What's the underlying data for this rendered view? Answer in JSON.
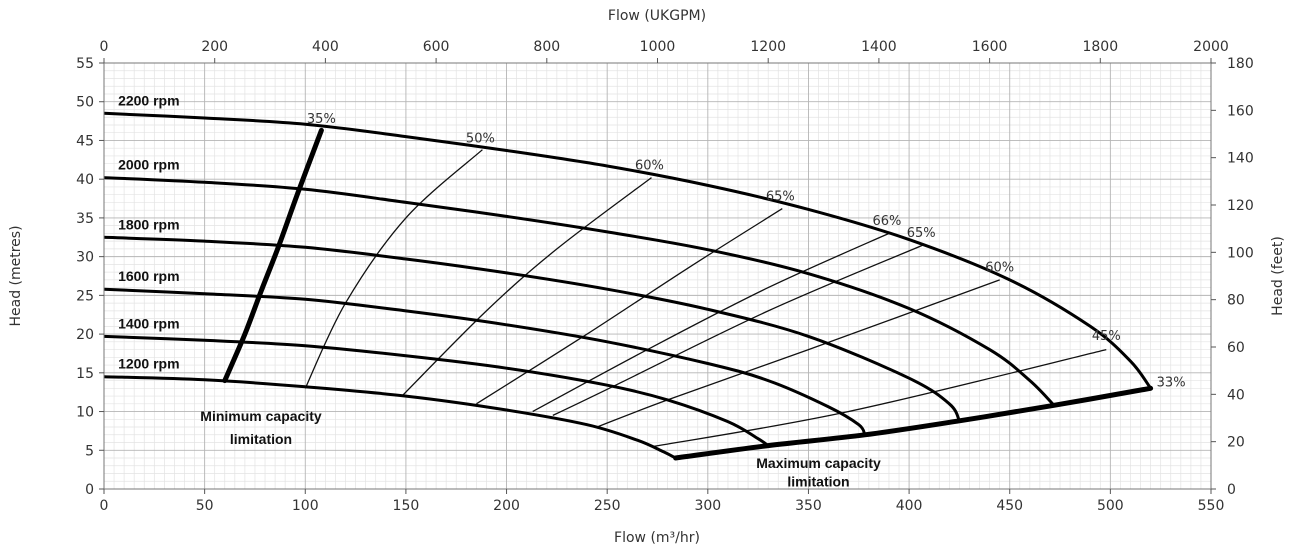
{
  "chart_data": {
    "type": "line",
    "title": "",
    "xlabel": "Flow (m³/hr)",
    "x2label": "Flow (UKGPM)",
    "ylabel": "Head (metres)",
    "y2label": "Head (feet)",
    "xlim": [
      0,
      550
    ],
    "ylim": [
      0,
      55
    ],
    "x2lim": [
      0,
      2000
    ],
    "y2lim": [
      0,
      180
    ],
    "x_ticks": [
      "0",
      "50",
      "100",
      "150",
      "200",
      "250",
      "300",
      "350",
      "400",
      "450",
      "500",
      "550"
    ],
    "y_ticks": [
      "0",
      "5",
      "10",
      "15",
      "20",
      "25",
      "30",
      "35",
      "40",
      "45",
      "50",
      "55"
    ],
    "x2_ticks": [
      "0",
      "200",
      "400",
      "600",
      "800",
      "1000",
      "1200",
      "1400",
      "1600",
      "1800",
      "2000"
    ],
    "y2_ticks": [
      "0",
      "20",
      "40",
      "60",
      "80",
      "100",
      "120",
      "140",
      "160",
      "180"
    ],
    "grid": true,
    "series": [
      {
        "name": "2200 rpm",
        "x": [
          0,
          50,
          100,
          150,
          200,
          250,
          300,
          350,
          400,
          450,
          490,
          510,
          520
        ],
        "y": [
          48.5,
          47.9,
          47.1,
          45.5,
          43.7,
          41.7,
          39.2,
          36.1,
          32.2,
          27.0,
          21.0,
          16.5,
          13.0
        ]
      },
      {
        "name": "2000 rpm",
        "x": [
          0,
          50,
          100,
          150,
          200,
          250,
          300,
          350,
          400,
          440,
          460,
          472
        ],
        "y": [
          40.2,
          39.6,
          38.7,
          37.0,
          35.2,
          33.2,
          30.9,
          27.8,
          23.3,
          18.0,
          14.0,
          10.8
        ]
      },
      {
        "name": "1800 rpm",
        "x": [
          0,
          50,
          100,
          150,
          200,
          250,
          300,
          350,
          400,
          420,
          425
        ],
        "y": [
          32.5,
          32.0,
          31.2,
          29.7,
          27.9,
          25.8,
          23.2,
          19.7,
          14.3,
          11.0,
          8.8
        ]
      },
      {
        "name": "1600 rpm",
        "x": [
          0,
          50,
          100,
          150,
          200,
          250,
          300,
          330,
          360,
          375,
          378
        ],
        "y": [
          25.8,
          25.2,
          24.5,
          23.0,
          21.2,
          19.0,
          16.2,
          14.0,
          10.6,
          8.3,
          7.0
        ]
      },
      {
        "name": "1400 rpm",
        "x": [
          0,
          50,
          100,
          150,
          200,
          250,
          280,
          310,
          325,
          330
        ],
        "y": [
          19.7,
          19.2,
          18.5,
          17.2,
          15.6,
          13.4,
          11.5,
          8.7,
          6.5,
          5.6
        ]
      },
      {
        "name": "1200 rpm",
        "x": [
          0,
          50,
          100,
          150,
          200,
          240,
          265,
          278,
          284
        ],
        "y": [
          14.5,
          14.1,
          13.2,
          12.0,
          10.2,
          8.3,
          6.3,
          4.8,
          4.0
        ]
      }
    ],
    "efficiency_curves": [
      {
        "label": "35%",
        "x": [
          108,
          95,
          85,
          77,
          70,
          60
        ],
        "y": [
          46.3,
          37.0,
          30.0,
          24.5,
          20.0,
          14.0
        ],
        "label_x": 108,
        "label_y": 47.0
      },
      {
        "label": "50%",
        "x": [
          188,
          150,
          120,
          100
        ],
        "y": [
          43.8,
          35.0,
          24.0,
          13.0
        ],
        "label_x": 187,
        "label_y": 44.5
      },
      {
        "label": "60%",
        "x": [
          272,
          225,
          190,
          148
        ],
        "y": [
          40.2,
          31.0,
          23.0,
          12.0
        ],
        "label_x": 271,
        "label_y": 41.0
      },
      {
        "label": "65%",
        "x": [
          337,
          290,
          240,
          185
        ],
        "y": [
          36.2,
          28.5,
          20.0,
          11.0
        ],
        "label_x": 336,
        "label_y": 37.0
      },
      {
        "label": "66%",
        "x": [
          390,
          330,
          270,
          213
        ],
        "y": [
          33.0,
          26.0,
          18.0,
          10.0
        ],
        "label_x": 389,
        "label_y": 33.8
      },
      {
        "label": "65%",
        "x": [
          407,
          330,
          255,
          223
        ],
        "y": [
          31.5,
          23.0,
          13.5,
          9.5
        ],
        "label_x": 406,
        "label_y": 32.3
      },
      {
        "label": "60%",
        "x": [
          445,
          350,
          280,
          245
        ],
        "y": [
          27.0,
          18.0,
          11.5,
          8.0
        ],
        "label_x": 445,
        "label_y": 27.8
      },
      {
        "label": "45%",
        "x": [
          498,
          370,
          273
        ],
        "y": [
          18.0,
          10.0,
          5.5
        ],
        "label_x": 498,
        "label_y": 19.0
      },
      {
        "label": "33%",
        "x": [
          520
        ],
        "y": [
          13.0
        ],
        "label_x": 523,
        "label_y": 13.0
      }
    ],
    "min_capacity_limit": {
      "x": [
        60,
        70,
        78,
        87,
        96,
        108
      ],
      "y": [
        14.0,
        20.0,
        25.5,
        31.5,
        38.0,
        46.3
      ]
    },
    "max_capacity_limit": {
      "x": [
        284,
        330,
        378,
        425,
        472,
        520
      ],
      "y": [
        4.0,
        5.6,
        7.0,
        8.8,
        10.8,
        13.0
      ]
    },
    "annotations": {
      "min_capacity_line1": "Minimum capacity",
      "min_capacity_line2": "limitation",
      "max_capacity_line1": "Maximum capacity",
      "max_capacity_line2": "limitation"
    }
  }
}
